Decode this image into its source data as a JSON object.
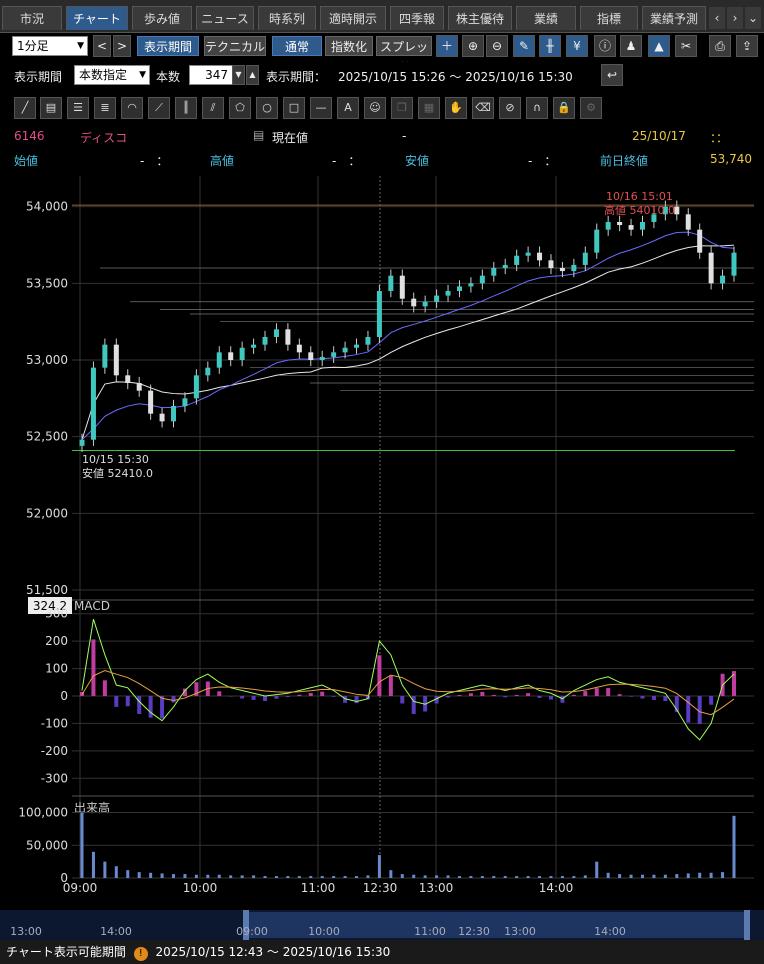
{
  "tabs": [
    {
      "label": "市況",
      "active": false
    },
    {
      "label": "チャート",
      "active": true
    },
    {
      "label": "歩み値",
      "active": false
    },
    {
      "label": "ニュース",
      "active": false
    },
    {
      "label": "時系列",
      "active": false
    },
    {
      "label": "適時開示",
      "active": false
    },
    {
      "label": "四季報",
      "active": false
    },
    {
      "label": "株主優待",
      "active": false
    },
    {
      "label": "業績",
      "active": false
    },
    {
      "label": "指標",
      "active": false
    },
    {
      "label": "業績予測",
      "active": false
    }
  ],
  "toolbar": {
    "interval": "1分足",
    "display_period": "表示期間",
    "technical": "テクニカル",
    "normal": "通常",
    "index": "指数化",
    "spread": "スプレッド"
  },
  "period_row": {
    "period_label": "表示期間",
    "mode": "本数指定",
    "count_label": "本数",
    "count": "347",
    "range_label": "表示期間：",
    "range": "2025/10/15 15:26 〜 2025/10/16 15:30"
  },
  "quote": {
    "code": "6146",
    "name": "ディスコ",
    "current_label": "現在値",
    "current_value": "-",
    "date": "25/10/17",
    "time": "：：",
    "open_label": "始値",
    "open_value": "-　：",
    "high_label": "高値",
    "high_value": "-　：",
    "low_label": "安値",
    "low_value": "-　：",
    "prev_close_label": "前日終値",
    "prev_close_value": "53,740"
  },
  "footer": {
    "label": "チャート表示可能期間",
    "range": "2025/10/15 12:43 〜 2025/10/16 15:30"
  },
  "chart_data": {
    "type": "candlestick",
    "price_axis": {
      "ticks": [
        "54,000",
        "53,500",
        "53,000",
        "52,500",
        "52,000",
        "51,500"
      ],
      "range": [
        51500,
        54200
      ]
    },
    "time_axis": {
      "ticks": [
        "09:00",
        "10:00",
        "11:00",
        "12:30",
        "13:00",
        "14:00"
      ]
    },
    "annotations": {
      "high_time": "10/16 15:01",
      "high_label": "高値 54010.0",
      "low_time": "10/15 15:30",
      "low_label": "安値 52410.0"
    },
    "close_series": [
      52480,
      52950,
      53100,
      52900,
      52850,
      52800,
      52650,
      52600,
      52700,
      52750,
      52900,
      52950,
      53050,
      53000,
      53080,
      53100,
      53150,
      53200,
      53100,
      53050,
      53000,
      53020,
      53050,
      53080,
      53100,
      53150,
      53450,
      53550,
      53400,
      53350,
      53380,
      53420,
      53450,
      53480,
      53500,
      53550,
      53600,
      53620,
      53680,
      53700,
      53650,
      53600,
      53580,
      53620,
      53700,
      53850,
      53900,
      53880,
      53850,
      53900,
      53950,
      54000,
      53950,
      53850,
      53700,
      53500,
      53550,
      53700
    ],
    "macd": {
      "label": "MACD",
      "value_box": "324.2",
      "ticks": [
        "300",
        "200",
        "100",
        "0",
        "-100",
        "-200",
        "-300"
      ],
      "range": [
        -350,
        350
      ],
      "series": [
        20,
        280,
        150,
        40,
        30,
        -20,
        -60,
        -90,
        -40,
        20,
        60,
        80,
        50,
        30,
        20,
        10,
        0,
        5,
        10,
        20,
        30,
        40,
        20,
        -10,
        -20,
        -10,
        200,
        150,
        40,
        -20,
        -30,
        -10,
        10,
        20,
        30,
        40,
        30,
        20,
        30,
        40,
        20,
        10,
        -10,
        20,
        40,
        60,
        70,
        50,
        40,
        30,
        20,
        10,
        -50,
        -120,
        -160,
        -100,
        40,
        80
      ]
    },
    "volume": {
      "label": "出来高",
      "ticks": [
        "100,000",
        "50,000",
        "0"
      ],
      "range": [
        0,
        110000
      ],
      "series": [
        100000,
        40000,
        25000,
        18000,
        12000,
        9000,
        8000,
        7000,
        6000,
        6000,
        5000,
        5000,
        5000,
        4000,
        4000,
        4000,
        3000,
        3000,
        3000,
        3000,
        3000,
        3000,
        3000,
        3000,
        3000,
        4000,
        35000,
        12000,
        6000,
        5000,
        4000,
        4000,
        4000,
        3000,
        3000,
        3000,
        3000,
        3000,
        3000,
        3000,
        3000,
        3000,
        3000,
        3000,
        4000,
        25000,
        8000,
        6000,
        5000,
        5000,
        5000,
        5000,
        6000,
        7000,
        8000,
        8000,
        9000,
        95000
      ]
    },
    "navigator": {
      "ticks": [
        "13:00",
        "14:00",
        "09:00",
        "10:00",
        "11:00",
        "12:30",
        "13:00",
        "14:00"
      ]
    }
  }
}
